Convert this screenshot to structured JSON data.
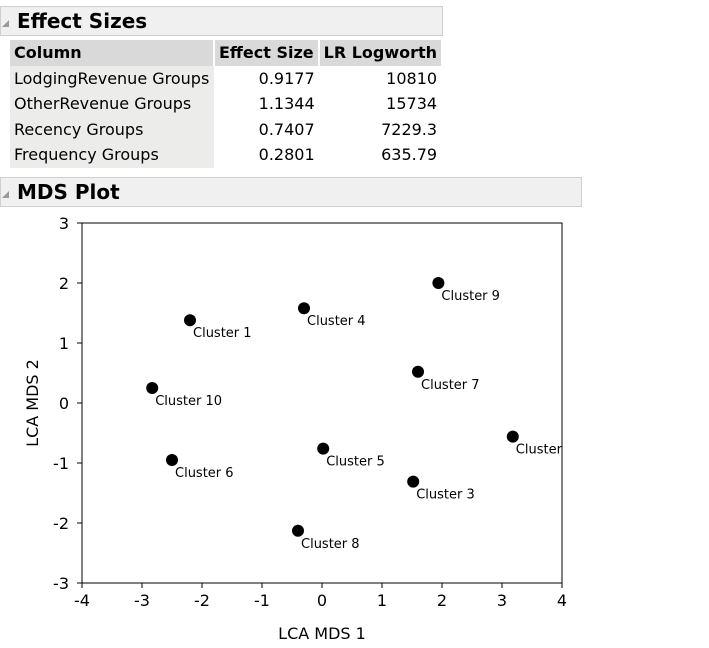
{
  "effect_sizes": {
    "title": "Effect Sizes",
    "columns": [
      "Column",
      "Effect Size",
      "LR Logworth"
    ],
    "rows": [
      {
        "column": "LodgingRevenue Groups",
        "effect_size": "0.9177",
        "lr_logworth": "10810"
      },
      {
        "column": "OtherRevenue Groups",
        "effect_size": "1.1344",
        "lr_logworth": "15734"
      },
      {
        "column": "Recency Groups",
        "effect_size": "0.7407",
        "lr_logworth": "7229.3"
      },
      {
        "column": "Frequency Groups",
        "effect_size": "0.2801",
        "lr_logworth": "635.79"
      }
    ]
  },
  "mds_plot": {
    "title": "MDS Plot"
  },
  "chart_data": {
    "type": "scatter",
    "xlabel": "LCA MDS 1",
    "ylabel": "LCA MDS 2",
    "xlim": [
      -4,
      4
    ],
    "ylim": [
      -3,
      3
    ],
    "xticks": [
      -4,
      -3,
      -2,
      -1,
      0,
      1,
      2,
      3,
      4
    ],
    "yticks": [
      -3,
      -2,
      -1,
      0,
      1,
      2,
      3
    ],
    "points": [
      {
        "label": "Cluster 1",
        "x": -2.2,
        "y": 1.38
      },
      {
        "label": "Cluster 4",
        "x": -0.3,
        "y": 1.58
      },
      {
        "label": "Cluster 9",
        "x": 1.94,
        "y": 2.0
      },
      {
        "label": "Cluster 10",
        "x": -2.83,
        "y": 0.25
      },
      {
        "label": "Cluster 7",
        "x": 1.6,
        "y": 0.52
      },
      {
        "label": "Cluster",
        "x": 3.18,
        "y": -0.56
      },
      {
        "label": "Cluster 5",
        "x": 0.02,
        "y": -0.76
      },
      {
        "label": "Cluster 6",
        "x": -2.5,
        "y": -0.95
      },
      {
        "label": "Cluster 3",
        "x": 1.52,
        "y": -1.31
      },
      {
        "label": "Cluster 8",
        "x": -0.4,
        "y": -2.13
      }
    ],
    "marker_color": "#000000",
    "grid": false
  }
}
